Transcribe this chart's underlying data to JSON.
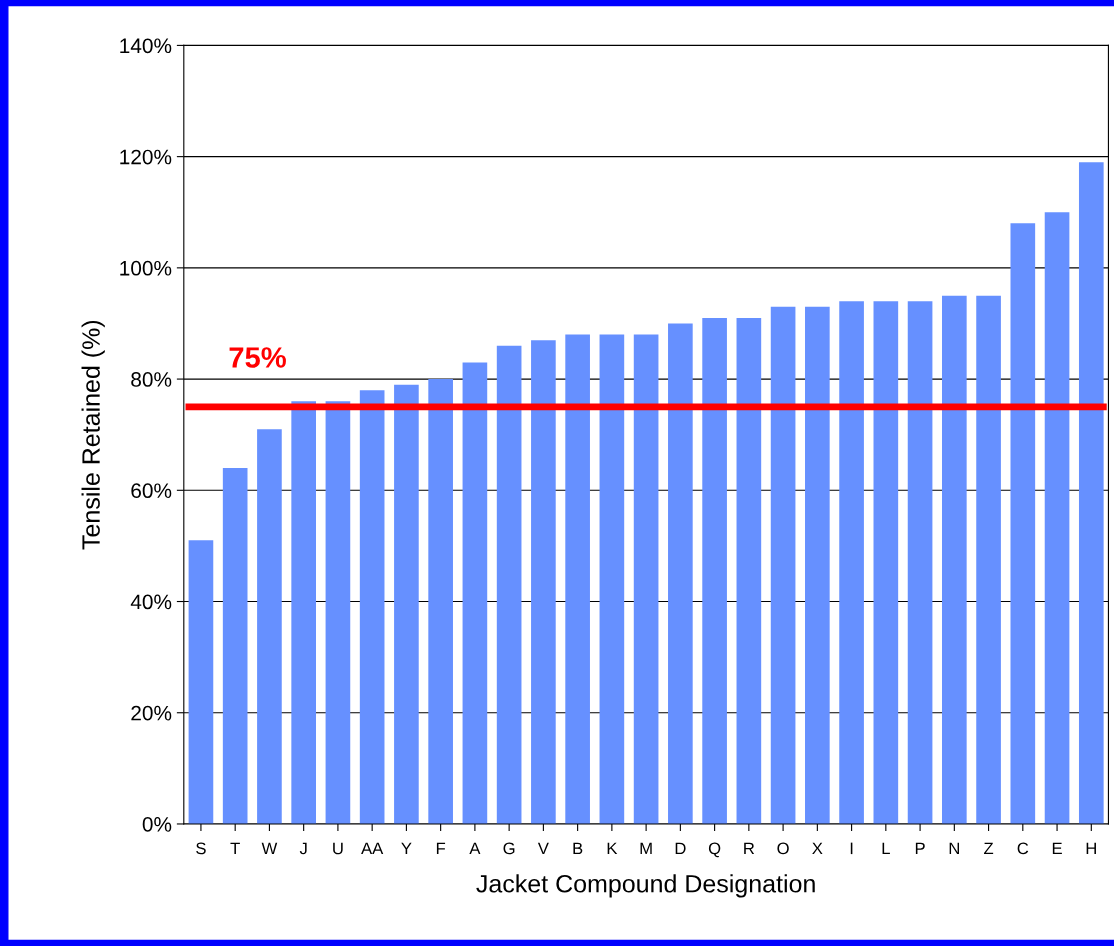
{
  "chart_data": {
    "type": "bar",
    "xlabel": "Jacket Compound Designation",
    "ylabel": "Tensile Retained (%)",
    "categories": [
      "S",
      "T",
      "W",
      "J",
      "U",
      "AA",
      "Y",
      "F",
      "A",
      "G",
      "V",
      "B",
      "K",
      "M",
      "D",
      "Q",
      "R",
      "O",
      "X",
      "I",
      "L",
      "P",
      "N",
      "Z",
      "C",
      "E",
      "H"
    ],
    "values": [
      51,
      64,
      71,
      76,
      76,
      78,
      79,
      80,
      83,
      86,
      87,
      88,
      88,
      88,
      90,
      91,
      91,
      93,
      93,
      94,
      94,
      94,
      95,
      95,
      108,
      110,
      119
    ],
    "color": "#6690ff",
    "ylim": [
      0,
      140
    ],
    "yticks": [
      {
        "value": 0,
        "label": "0%"
      },
      {
        "value": 20,
        "label": "20%"
      },
      {
        "value": 40,
        "label": "40%"
      },
      {
        "value": 60,
        "label": "60%"
      },
      {
        "value": 80,
        "label": "80%"
      },
      {
        "value": 100,
        "label": "100%"
      },
      {
        "value": 120,
        "label": "120%"
      },
      {
        "value": 140,
        "label": "140%"
      }
    ],
    "grid": "y",
    "ref_lines": [
      {
        "axis": "y",
        "value": 75,
        "label": "75%",
        "color": "#ff0000"
      }
    ]
  }
}
